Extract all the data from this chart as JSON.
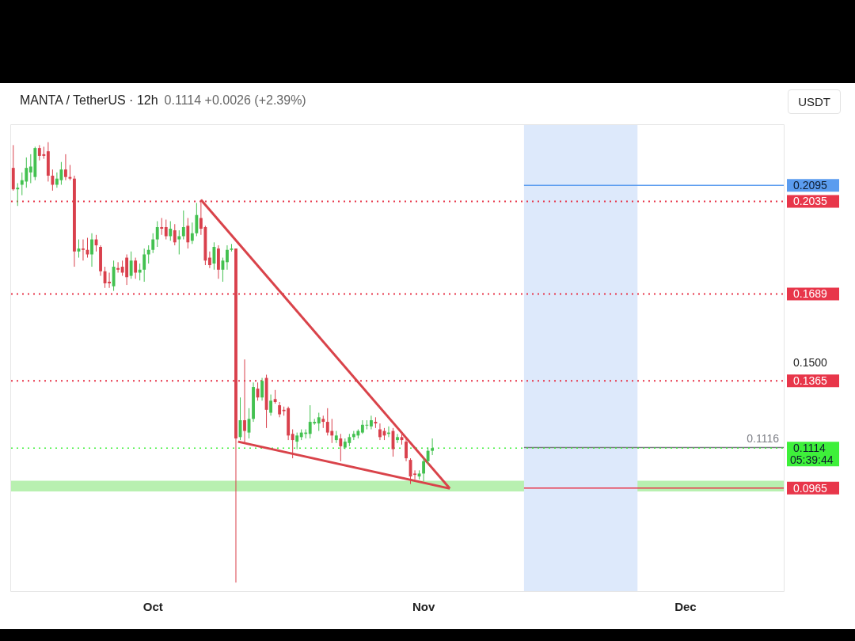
{
  "chart_data": {
    "type": "candlestick",
    "title": "MANTA / TetherUS · 12h",
    "subtitle": "0.1114 +0.0026 (+2.39%)",
    "x": [
      "--09-15T00:00",
      "--09-15T12:00",
      "--09-16T00:00",
      "--09-16T12:00",
      "--09-17T00:00",
      "--09-17T12:00",
      "--09-18T00:00",
      "--09-18T12:00",
      "--09-19T00:00",
      "--09-19T12:00",
      "--09-20T00:00",
      "--09-20T12:00",
      "--09-21T00:00",
      "--09-21T12:00",
      "--09-22T00:00",
      "--09-22T12:00",
      "--09-23T00:00",
      "--09-23T12:00",
      "--09-24T00:00",
      "--09-24T12:00",
      "--09-25T00:00",
      "--09-25T12:00",
      "--09-26T00:00",
      "--09-26T12:00",
      "--09-27T00:00",
      "--09-27T12:00",
      "--09-28T00:00",
      "--09-28T12:00",
      "--09-29T00:00",
      "--09-29T12:00",
      "--09-30T00:00",
      "--09-30T12:00",
      "--10-01T00:00",
      "--10-01T12:00",
      "--10-02T00:00",
      "--10-02T12:00",
      "--10-03T00:00",
      "--10-03T12:00",
      "--10-04T00:00",
      "--10-04T12:00",
      "--10-05T00:00",
      "--10-05T12:00",
      "--10-06T00:00",
      "--10-06T12:00",
      "--10-07T00:00",
      "--10-07T12:00",
      "--10-08T00:00",
      "--10-08T12:00",
      "--10-09T00:00",
      "--10-09T12:00",
      "--10-10T00:00",
      "--10-10T12:00",
      "--10-11T00:00",
      "--10-11T12:00",
      "--10-12T00:00",
      "--10-12T12:00",
      "--10-13T00:00",
      "--10-13T12:00",
      "--10-14T00:00",
      "--10-14T12:00",
      "--10-15T00:00",
      "--10-15T12:00",
      "--10-16T00:00",
      "--10-16T12:00",
      "--10-17T00:00",
      "--10-17T12:00",
      "--10-18T00:00",
      "--10-18T12:00",
      "--10-19T00:00",
      "--10-19T12:00",
      "--10-20T00:00",
      "--10-20T12:00",
      "--10-21T00:00",
      "--10-21T12:00",
      "--10-22T00:00",
      "--10-22T12:00",
      "--10-23T00:00",
      "--10-23T12:00",
      "--10-24T00:00",
      "--10-24T12:00",
      "--10-25T00:00",
      "--10-25T12:00",
      "--10-26T00:00",
      "--10-26T12:00",
      "--10-27T00:00",
      "--10-27T12:00",
      "--10-28T00:00",
      "--10-28T12:00",
      "--10-29T00:00",
      "--10-29T12:00",
      "--10-30T00:00",
      "--10-30T12:00",
      "--10-31T00:00",
      "--10-31T12:00",
      "--11-01T00:00",
      "--11-01T12:00",
      "--11-02T00:00"
    ],
    "ohlc": [
      [
        0.216,
        0.2245,
        0.2075,
        0.208
      ],
      [
        0.208,
        0.2103,
        0.2018,
        0.2086
      ],
      [
        0.2097,
        0.2143,
        0.2058,
        0.2114
      ],
      [
        0.2109,
        0.2199,
        0.2086,
        0.216
      ],
      [
        0.2143,
        0.2211,
        0.2103,
        0.2165
      ],
      [
        0.2126,
        0.2239,
        0.2114,
        0.2234
      ],
      [
        0.2234,
        0.2245,
        0.2188,
        0.2205
      ],
      [
        0.2211,
        0.2239,
        0.2194,
        0.2205
      ],
      [
        0.2222,
        0.2256,
        0.2109,
        0.2131
      ],
      [
        0.2131,
        0.2154,
        0.2075,
        0.2097
      ],
      [
        0.2097,
        0.2143,
        0.2086,
        0.212
      ],
      [
        0.2114,
        0.2182,
        0.2097,
        0.2154
      ],
      [
        0.2154,
        0.2211,
        0.2114,
        0.2126
      ],
      [
        0.2126,
        0.2171,
        0.2114,
        0.212
      ],
      [
        0.212,
        0.2131,
        0.1791,
        0.1848
      ],
      [
        0.1848,
        0.1893,
        0.1825,
        0.1859
      ],
      [
        0.1859,
        0.1893,
        0.1814,
        0.1854
      ],
      [
        0.1854,
        0.1899,
        0.1825,
        0.1837
      ],
      [
        0.1837,
        0.1916,
        0.1791,
        0.1893
      ],
      [
        0.1893,
        0.191,
        0.1848,
        0.1871
      ],
      [
        0.1865,
        0.1871,
        0.1757,
        0.1774
      ],
      [
        0.1774,
        0.1791,
        0.1712,
        0.1729
      ],
      [
        0.1735,
        0.1769,
        0.1712,
        0.1729
      ],
      [
        0.1718,
        0.1814,
        0.1701,
        0.1791
      ],
      [
        0.1786,
        0.1808,
        0.1769,
        0.178
      ],
      [
        0.1791,
        0.1814,
        0.1757,
        0.1769
      ],
      [
        0.1825,
        0.1837,
        0.1723,
        0.1752
      ],
      [
        0.1757,
        0.1848,
        0.1746,
        0.1814
      ],
      [
        0.1814,
        0.1825,
        0.1746,
        0.1769
      ],
      [
        0.1769,
        0.1803,
        0.174,
        0.178
      ],
      [
        0.178,
        0.1859,
        0.1735,
        0.1837
      ],
      [
        0.1837,
        0.1871,
        0.1803,
        0.1854
      ],
      [
        0.1854,
        0.1916,
        0.1842,
        0.1893
      ],
      [
        0.1893,
        0.1961,
        0.1865,
        0.1939
      ],
      [
        0.1939,
        0.1973,
        0.191,
        0.1933
      ],
      [
        0.1939,
        0.1967,
        0.1893,
        0.1905
      ],
      [
        0.1905,
        0.1961,
        0.1888,
        0.1933
      ],
      [
        0.1927,
        0.195,
        0.1871,
        0.1882
      ],
      [
        0.1893,
        0.1927,
        0.1837,
        0.1905
      ],
      [
        0.1905,
        0.2001,
        0.1893,
        0.1939
      ],
      [
        0.1944,
        0.1973,
        0.1859,
        0.1882
      ],
      [
        0.1888,
        0.1956,
        0.1876,
        0.1916
      ],
      [
        0.1916,
        0.2029,
        0.1905,
        0.1984
      ],
      [
        0.1973,
        0.2041,
        0.191,
        0.1933
      ],
      [
        0.1939,
        0.1944,
        0.1797,
        0.1814
      ],
      [
        0.1825,
        0.1848,
        0.1786,
        0.1797
      ],
      [
        0.1803,
        0.1882,
        0.178,
        0.1865
      ],
      [
        0.1859,
        0.1871,
        0.1746,
        0.178
      ],
      [
        0.178,
        0.1825,
        0.1735,
        0.1814
      ],
      [
        0.1808,
        0.1871,
        0.178,
        0.1854
      ],
      [
        0.1854,
        0.1876,
        0.1848,
        0.1859
      ],
      [
        0.1859,
        0.1859,
        0.0612,
        0.115
      ],
      [
        0.1155,
        0.1303,
        0.1144,
        0.1218
      ],
      [
        0.1218,
        0.1445,
        0.1133,
        0.1178
      ],
      [
        0.1172,
        0.1263,
        0.115,
        0.1223
      ],
      [
        0.1223,
        0.1359,
        0.1212,
        0.1342
      ],
      [
        0.1336,
        0.1359,
        0.1291,
        0.1303
      ],
      [
        0.1303,
        0.1376,
        0.1291,
        0.1365
      ],
      [
        0.1376,
        0.1388,
        0.1189,
        0.1257
      ],
      [
        0.1246,
        0.1314,
        0.1235,
        0.1291
      ],
      [
        0.1297,
        0.1331,
        0.128,
        0.1286
      ],
      [
        0.1274,
        0.1286,
        0.1229,
        0.124
      ],
      [
        0.1257,
        0.1269,
        0.1235,
        0.1252
      ],
      [
        0.1263,
        0.1269,
        0.1144,
        0.1161
      ],
      [
        0.1167,
        0.1184,
        0.1076,
        0.1144
      ],
      [
        0.1138,
        0.1172,
        0.111,
        0.1161
      ],
      [
        0.1155,
        0.1184,
        0.1144,
        0.1172
      ],
      [
        0.1167,
        0.1184,
        0.115,
        0.1172
      ],
      [
        0.1167,
        0.1274,
        0.115,
        0.1212
      ],
      [
        0.1206,
        0.1223,
        0.1201,
        0.1212
      ],
      [
        0.1206,
        0.1246,
        0.1178,
        0.1229
      ],
      [
        0.1223,
        0.1235,
        0.1189,
        0.1212
      ],
      [
        0.1212,
        0.1263,
        0.1161,
        0.1172
      ],
      [
        0.1178,
        0.1223,
        0.1133,
        0.1161
      ],
      [
        0.1144,
        0.1178,
        0.1133,
        0.1161
      ],
      [
        0.115,
        0.1167,
        0.1065,
        0.1121
      ],
      [
        0.1116,
        0.115,
        0.111,
        0.1138
      ],
      [
        0.1133,
        0.1167,
        0.1121,
        0.1155
      ],
      [
        0.1155,
        0.1178,
        0.1144,
        0.1167
      ],
      [
        0.1161,
        0.1184,
        0.115,
        0.1178
      ],
      [
        0.1172,
        0.1218,
        0.1167,
        0.1201
      ],
      [
        0.1201,
        0.1218,
        0.1184,
        0.1201
      ],
      [
        0.1195,
        0.1235,
        0.1184,
        0.1218
      ],
      [
        0.1212,
        0.1229,
        0.1189,
        0.1206
      ],
      [
        0.1184,
        0.1206,
        0.1144,
        0.1155
      ],
      [
        0.1178,
        0.1189,
        0.1144,
        0.1161
      ],
      [
        0.1167,
        0.1195,
        0.1155,
        0.1172
      ],
      [
        0.1178,
        0.1189,
        0.1082,
        0.111
      ],
      [
        0.1144,
        0.1167,
        0.1133,
        0.1155
      ],
      [
        0.1155,
        0.1172,
        0.1127,
        0.1144
      ],
      [
        0.1138,
        0.115,
        0.1065,
        0.1076
      ],
      [
        0.107,
        0.1076,
        0.098,
        0.1008
      ],
      [
        0.1019,
        0.1031,
        0.0997,
        0.1014
      ],
      [
        0.1008,
        0.1031,
        0.0997,
        0.1019
      ],
      [
        0.1019,
        0.1076,
        0.0991,
        0.1065
      ],
      [
        0.1065,
        0.1116,
        0.1053,
        0.1104
      ],
      [
        0.1104,
        0.115,
        0.1088,
        0.1114
      ]
    ],
    "colors": [
      "#d9404c",
      "#43c150",
      "#43c150",
      "#43c150",
      "#43c150",
      "#43c150",
      "#d9404c",
      "#d9404c",
      "#d9404c",
      "#d9404c",
      "#43c150",
      "#43c150",
      "#d9404c",
      "#d9404c",
      "#d9404c",
      "#43c150",
      "#d9404c",
      "#d9404c",
      "#43c150",
      "#d9404c",
      "#d9404c",
      "#d9404c",
      "#d9404c",
      "#43c150",
      "#d9404c",
      "#d9404c",
      "#d9404c",
      "#43c150",
      "#d9404c",
      "#43c150",
      "#43c150",
      "#43c150",
      "#43c150",
      "#43c150",
      "#d9404c",
      "#d9404c",
      "#43c150",
      "#d9404c",
      "#43c150",
      "#43c150",
      "#d9404c",
      "#43c150",
      "#43c150",
      "#d9404c",
      "#d9404c",
      "#d9404c",
      "#43c150",
      "#d9404c",
      "#43c150",
      "#43c150",
      "#43c150",
      "#d9404c",
      "#43c150",
      "#d9404c",
      "#43c150",
      "#43c150",
      "#d9404c",
      "#43c150",
      "#d9404c",
      "#43c150",
      "#d9404c",
      "#d9404c",
      "#d9404c",
      "#d9404c",
      "#d9404c",
      "#43c150",
      "#43c150",
      "#43c150",
      "#43c150",
      "#43c150",
      "#43c150",
      "#d9404c",
      "#d9404c",
      "#d9404c",
      "#43c150",
      "#d9404c",
      "#43c150",
      "#43c150",
      "#43c150",
      "#43c150",
      "#43c150",
      "#43c150",
      "#43c150",
      "#d9404c",
      "#d9404c",
      "#d9404c",
      "#43c150",
      "#d9404c",
      "#43c150",
      "#d9404c",
      "#d9404c",
      "#d9404c",
      "#d9404c",
      "#43c150",
      "#43c150",
      "#43c150",
      "#43c150"
    ],
    "series": [
      {
        "type": "line",
        "color": "#d9434a",
        "x": [
          "--10-06T12:00",
          "--11-04T00:00"
        ],
        "values": [
          0.2041,
          0.0963
        ]
      },
      {
        "type": "line",
        "color": "#d9434a",
        "x": [
          "--10-10T18:00",
          "--11-04T00:00"
        ],
        "values": [
          0.1138,
          0.0963
        ]
      }
    ],
    "ref_lines": [
      {
        "axis": "y",
        "value": 0.2095,
        "label": "0.2095",
        "color": "#5b9cef",
        "line_style": "solid"
      },
      {
        "axis": "y",
        "value": 0.2035,
        "label": "0.2035",
        "color": "#e8364a",
        "line_style": "dotted"
      },
      {
        "axis": "y",
        "value": 0.1689,
        "label": "0.1689",
        "color": "#e8364a",
        "line_style": "dotted"
      },
      {
        "axis": "y",
        "value": 0.1365,
        "label": "0.1365",
        "color": "#e8364a",
        "line_style": "dotted"
      },
      {
        "axis": "y",
        "value": 0.1116,
        "label": "0.1116",
        "color": "#7b7d84",
        "line_style": "solid"
      },
      {
        "axis": "y",
        "value": 0.1114,
        "label": "0.1114",
        "color": "#3ef03a",
        "line_style": "dotted"
      },
      {
        "axis": "y",
        "value": 0.0965,
        "label": "0.0965",
        "color": "#e8364a",
        "line_style": "solid"
      }
    ],
    "bands": [
      {
        "axis": "y",
        "from": 0.0952,
        "to": 0.0992,
        "color": "#b8f0b0"
      },
      {
        "axis": "x",
        "from": "--11-12T12:00",
        "to": "--11-25T12:00",
        "color": "#dde9fb"
      }
    ],
    "annotations": [
      "USDT",
      "05:39:44",
      "0.1500"
    ],
    "xlim": [
      "--09-14T18:00",
      "--12-12T06:00"
    ],
    "xticks": [
      {
        "value": "--10-01",
        "label": "Oct"
      },
      {
        "value": "--11-01",
        "label": "Nov"
      },
      {
        "value": "--12-01",
        "label": "Dec"
      }
    ],
    "ylim": [
      0.058,
      0.232
    ],
    "legend": "right",
    "grid": false
  }
}
